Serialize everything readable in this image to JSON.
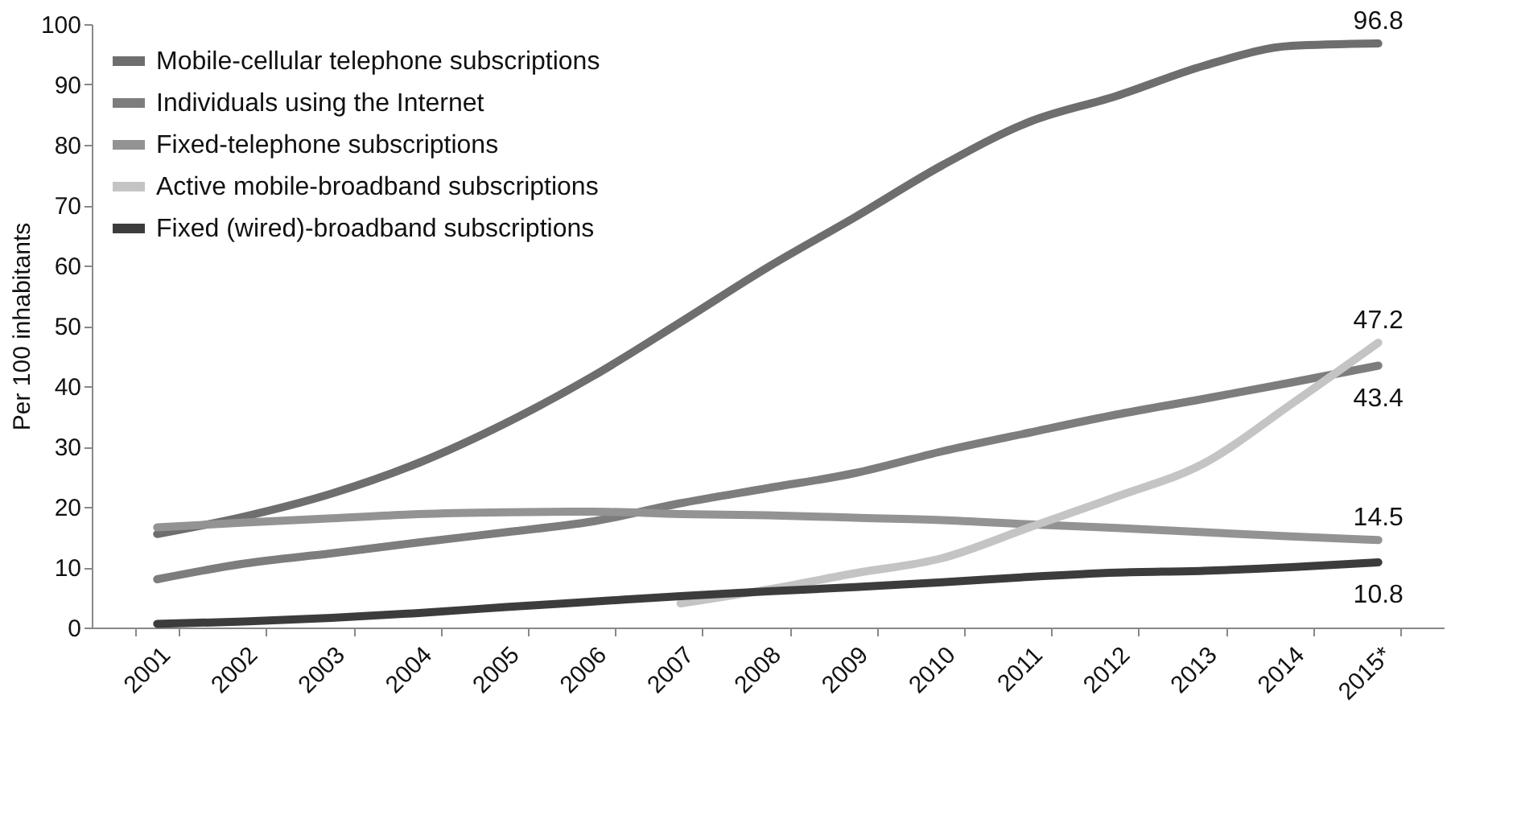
{
  "chart_data": {
    "type": "line",
    "ylabel": "Per 100 inhabitants",
    "categories": [
      "2001",
      "2002",
      "2003",
      "2004",
      "2005",
      "2006",
      "2007",
      "2008",
      "2009",
      "2010",
      "2011",
      "2012",
      "2013",
      "2014",
      "2015*"
    ],
    "ylim": [
      0,
      100
    ],
    "yticks": [
      0,
      10,
      20,
      30,
      40,
      50,
      60,
      70,
      80,
      90,
      100
    ],
    "grid": false,
    "legend": "top left",
    "line_style": "solid",
    "marker": "none",
    "series": [
      {
        "name": "Mobile-cellular telephone subscriptions",
        "color": "#6e6e6e",
        "values": [
          15.5,
          18.4,
          22.2,
          27.3,
          33.9,
          41.7,
          50.6,
          59.7,
          68.0,
          76.6,
          83.8,
          88.1,
          93.1,
          96.4,
          96.8
        ],
        "value_labels": [
          null,
          null,
          null,
          null,
          null,
          null,
          null,
          null,
          null,
          null,
          null,
          null,
          null,
          null,
          "96.8"
        ]
      },
      {
        "name": "Individuals using the Internet",
        "color": "#7d7d7d",
        "values": [
          8.0,
          10.6,
          12.3,
          14.1,
          15.8,
          17.6,
          20.6,
          23.1,
          25.6,
          29.2,
          32.3,
          35.3,
          37.9,
          40.6,
          43.4
        ],
        "value_labels": [
          null,
          null,
          null,
          null,
          null,
          null,
          null,
          null,
          null,
          null,
          null,
          null,
          null,
          null,
          "43.4"
        ]
      },
      {
        "name": "Fixed-telephone subscriptions",
        "color": "#939393",
        "values": [
          16.6,
          17.4,
          18.1,
          18.8,
          19.1,
          19.2,
          18.8,
          18.6,
          18.2,
          17.8,
          17.1,
          16.5,
          15.8,
          15.1,
          14.5
        ],
        "value_labels": [
          null,
          null,
          null,
          null,
          null,
          null,
          null,
          null,
          null,
          null,
          null,
          null,
          null,
          null,
          "14.5"
        ]
      },
      {
        "name": "Active mobile-broadband subscriptions",
        "color": "#c4c4c4",
        "values": [
          null,
          null,
          null,
          null,
          null,
          null,
          4.0,
          6.3,
          9.0,
          11.5,
          16.6,
          21.7,
          27.2,
          37.0,
          47.2
        ],
        "value_labels": [
          null,
          null,
          null,
          null,
          null,
          null,
          null,
          null,
          null,
          null,
          null,
          null,
          null,
          null,
          "47.2"
        ]
      },
      {
        "name": "Fixed (wired)-broadband subscriptions",
        "color": "#3c3c3c",
        "values": [
          0.6,
          1.0,
          1.6,
          2.4,
          3.4,
          4.3,
          5.2,
          6.0,
          6.7,
          7.5,
          8.4,
          9.1,
          9.4,
          10.0,
          10.8
        ],
        "value_labels": [
          null,
          null,
          null,
          null,
          null,
          null,
          null,
          null,
          null,
          null,
          null,
          null,
          null,
          null,
          "10.8"
        ]
      }
    ]
  }
}
